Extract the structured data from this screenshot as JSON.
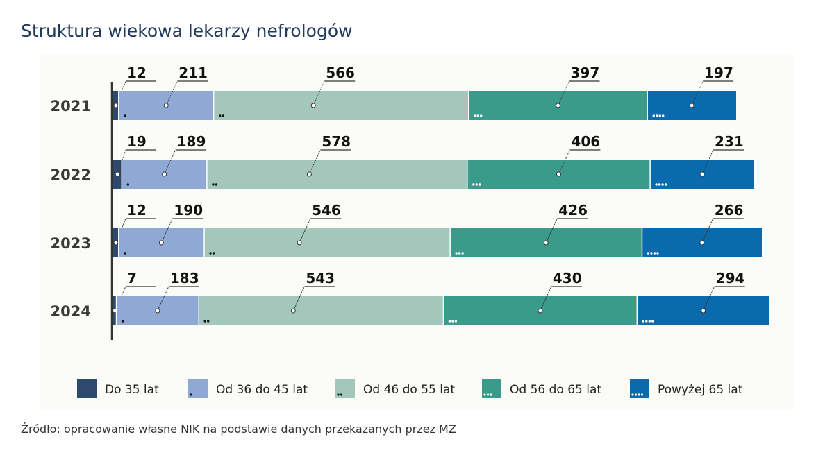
{
  "title": "Struktura wiekowa lekarzy nefrologów",
  "source": "Źródło: opracowanie własne NIK na podstawie danych przekazanych przez MZ",
  "chart_data": {
    "type": "bar",
    "orientation": "horizontal",
    "stacked": true,
    "title": "Struktura wiekowa lekarzy nefrologów",
    "categories": [
      "2021",
      "2022",
      "2023",
      "2024"
    ],
    "series": [
      {
        "name": "Do 35 lat",
        "values": [
          12,
          19,
          12,
          7
        ],
        "color": "#2d4a6e",
        "dots": 0,
        "dot_color": "#000000"
      },
      {
        "name": "Od 36 do 45 lat",
        "values": [
          211,
          189,
          190,
          183
        ],
        "color": "#8fa8d4",
        "dots": 1,
        "dot_color": "#111111"
      },
      {
        "name": "Od 46 do 55 lat",
        "values": [
          566,
          578,
          546,
          543
        ],
        "color": "#a3c8bb",
        "dots": 2,
        "dot_color": "#111111"
      },
      {
        "name": "Od 56 do 65 lat",
        "values": [
          397,
          406,
          426,
          430
        ],
        "color": "#3a9b8b",
        "dots": 3,
        "dot_color": "#ffffff"
      },
      {
        "name": "Powyżej 65 lat",
        "values": [
          197,
          231,
          266,
          294
        ],
        "color": "#0b6aac",
        "dots": 4,
        "dot_color": "#ffffff"
      }
    ],
    "data_labels": true,
    "legend_position": "bottom",
    "grid": false
  }
}
